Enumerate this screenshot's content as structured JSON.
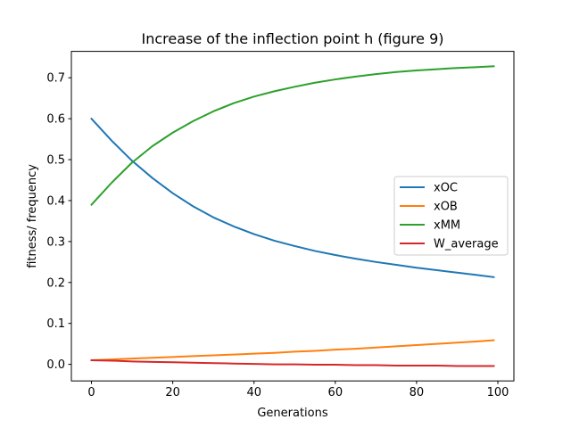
{
  "chart_data": {
    "type": "line",
    "title": "Increase of the inflection point h (figure 9)",
    "xlabel": "Generations",
    "ylabel": "fitness/ frequency",
    "xlim": [
      -4.95,
      103.95
    ],
    "ylim": [
      -0.0405,
      0.7645
    ],
    "xticks": [
      0,
      20,
      40,
      60,
      80,
      100
    ],
    "xtick_labels": [
      "0",
      "20",
      "40",
      "60",
      "80",
      "100"
    ],
    "yticks": [
      0.0,
      0.1,
      0.2,
      0.3,
      0.4,
      0.5,
      0.6,
      0.7
    ],
    "ytick_labels": [
      "0.0",
      "0.1",
      "0.2",
      "0.3",
      "0.4",
      "0.5",
      "0.6",
      "0.7"
    ],
    "grid": false,
    "legend_position": "center-right",
    "x": [
      0,
      5,
      10,
      15,
      20,
      25,
      30,
      35,
      40,
      45,
      50,
      55,
      60,
      65,
      70,
      75,
      80,
      85,
      90,
      95,
      99
    ],
    "series": [
      {
        "name": "xOC",
        "color": "#1f77b4",
        "values": [
          0.6,
          0.546,
          0.497,
          0.455,
          0.418,
          0.386,
          0.359,
          0.337,
          0.318,
          0.302,
          0.289,
          0.277,
          0.267,
          0.258,
          0.25,
          0.243,
          0.236,
          0.23,
          0.224,
          0.218,
          0.213
        ]
      },
      {
        "name": "xOB",
        "color": "#ff7f0e",
        "values": [
          0.01,
          0.012,
          0.014,
          0.016,
          0.018,
          0.02,
          0.022,
          0.024,
          0.026,
          0.028,
          0.031,
          0.033,
          0.036,
          0.038,
          0.041,
          0.044,
          0.047,
          0.05,
          0.053,
          0.056,
          0.059
        ]
      },
      {
        "name": "xMM",
        "color": "#2ca02c",
        "values": [
          0.39,
          0.444,
          0.493,
          0.533,
          0.566,
          0.594,
          0.618,
          0.638,
          0.654,
          0.667,
          0.678,
          0.688,
          0.696,
          0.703,
          0.709,
          0.714,
          0.718,
          0.721,
          0.724,
          0.726,
          0.728
        ]
      },
      {
        "name": "W_average",
        "color": "#d62728",
        "values": [
          0.01,
          0.009,
          0.007,
          0.006,
          0.005,
          0.004,
          0.003,
          0.002,
          0.001,
          0.0,
          -0.0,
          -0.001,
          -0.001,
          -0.002,
          -0.002,
          -0.003,
          -0.003,
          -0.003,
          -0.004,
          -0.004,
          -0.004
        ]
      }
    ]
  }
}
